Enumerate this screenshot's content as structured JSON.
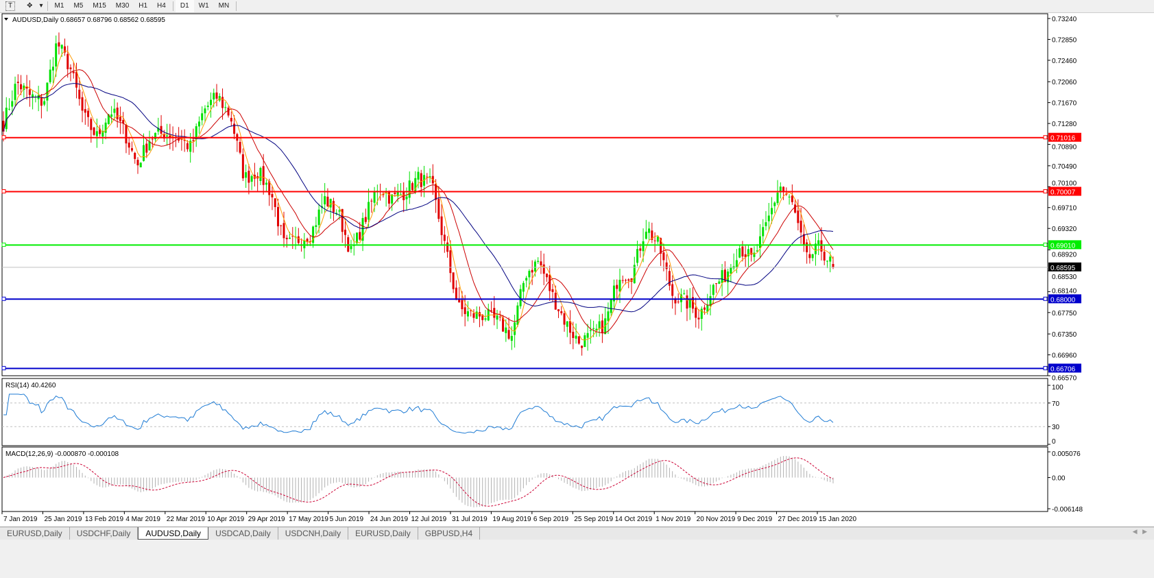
{
  "toolbar": {
    "timeframes": [
      "M1",
      "M5",
      "M15",
      "M30",
      "H1",
      "H4",
      "D1",
      "W1",
      "MN"
    ],
    "active": "D1",
    "icons": [
      "text-tool-icon",
      "shapes-tool-icon",
      "dropdown-arrow-icon"
    ]
  },
  "chart": {
    "title": "AUDUSD,Daily  0.68657 0.68796 0.68562 0.68595",
    "symbol": "AUDUSD",
    "timeframe": "Daily",
    "colors": {
      "bull": "#00e000",
      "bear": "#e00000",
      "ma_fast": "#ff9900",
      "ma_mid": "#cc0000",
      "ma_slow": "#000080",
      "rsi": "#1e7bd4",
      "macd_hist": "#b0b0b0",
      "macd_signal": "#cc0033"
    }
  },
  "chart_data": {
    "type": "candlestick",
    "price_axis": {
      "range": [
        0.6657,
        0.7324
      ],
      "ticks": [
        "0.73240",
        "0.72850",
        "0.72460",
        "0.72060",
        "0.71670",
        "0.71280",
        "0.70890",
        "0.70490",
        "0.70100",
        "0.69710",
        "0.69320",
        "0.68920",
        "0.68530",
        "0.68140",
        "0.67750",
        "0.67350",
        "0.66960",
        "0.66570"
      ]
    },
    "date_axis": [
      "7 Jan 2019",
      "25 Jan 2019",
      "13 Feb 2019",
      "4 Mar 2019",
      "22 Mar 2019",
      "10 Apr 2019",
      "29 Apr 2019",
      "17 May 2019",
      "5 Jun 2019",
      "24 Jun 2019",
      "12 Jul 2019",
      "31 Jul 2019",
      "19 Aug 2019",
      "6 Sep 2019",
      "25 Sep 2019",
      "14 Oct 2019",
      "1 Nov 2019",
      "20 Nov 2019",
      "9 Dec 2019",
      "27 Dec 2019",
      "15 Jan 2020"
    ],
    "close_path": [
      0.7128,
      0.7205,
      0.7179,
      0.7167,
      0.728,
      0.7231,
      0.714,
      0.7103,
      0.7154,
      0.7115,
      0.705,
      0.7103,
      0.711,
      0.7103,
      0.7083,
      0.7154,
      0.7179,
      0.714,
      0.7026,
      0.7038,
      0.7,
      0.6898,
      0.6911,
      0.6923,
      0.6987,
      0.6962,
      0.6885,
      0.6949,
      0.7013,
      0.6987,
      0.7,
      0.7026,
      0.7013,
      0.6898,
      0.6783,
      0.677,
      0.677,
      0.6757,
      0.6731,
      0.6847,
      0.6872,
      0.6808,
      0.6757,
      0.6719,
      0.6731,
      0.6757,
      0.6847,
      0.6847,
      0.6936,
      0.6898,
      0.6808,
      0.6795,
      0.677,
      0.6821,
      0.6847,
      0.6898,
      0.6872,
      0.6936,
      0.7013,
      0.6974,
      0.6872,
      0.6898,
      0.68595
    ],
    "last": {
      "open": 0.68657,
      "high": 0.68796,
      "low": 0.68562,
      "close": 0.68595,
      "label": "0.68595"
    },
    "hlines": [
      {
        "price": 0.71016,
        "label": "0.71016",
        "color": "#ff0000"
      },
      {
        "price": 0.70007,
        "label": "0.70007",
        "color": "#ff0000"
      },
      {
        "price": 0.6901,
        "label": "0.69010",
        "color": "#00ee00"
      },
      {
        "price": 0.68,
        "label": "0.68000",
        "color": "#0000cc"
      },
      {
        "price": 0.66706,
        "label": "0.66706",
        "color": "#0000cc"
      }
    ],
    "rsi": {
      "label": "RSI(14) 40.4260",
      "levels": [
        70,
        30
      ],
      "range": [
        0,
        100
      ],
      "ticks": [
        "100",
        "70",
        "30",
        "0"
      ]
    },
    "macd": {
      "label": "MACD(12,26,9) -0.000870 -0.000108",
      "range": [
        -0.006148,
        0.005076
      ],
      "ticks": [
        "0.005076",
        "0.00",
        "-0.006148"
      ]
    }
  },
  "tabs": [
    {
      "label": "EURUSD,Daily"
    },
    {
      "label": "USDCHF,Daily"
    },
    {
      "label": "AUDUSD,Daily",
      "active": true
    },
    {
      "label": "USDCAD,Daily"
    },
    {
      "label": "USDCNH,Daily"
    },
    {
      "label": "EURUSD,Daily"
    },
    {
      "label": "GBPUSD,H4"
    }
  ]
}
